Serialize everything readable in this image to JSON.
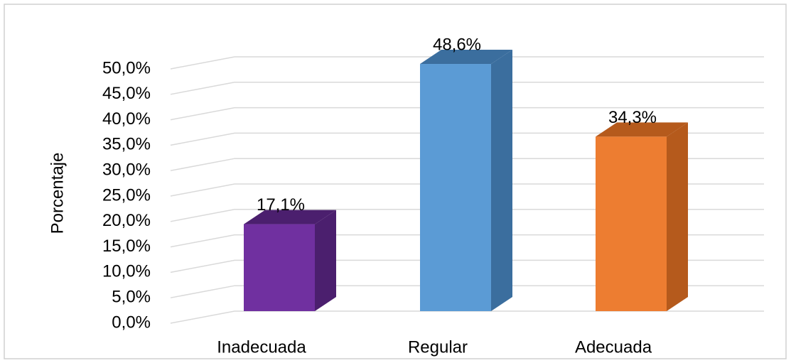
{
  "chart_data": {
    "type": "bar3d",
    "y_label": "Porcentaje",
    "categories": [
      "Inadecuada",
      "Regular",
      "Adecuada"
    ],
    "values": [
      17.1,
      48.6,
      34.3
    ],
    "value_labels": [
      "17,1%",
      "48,6%",
      "34,3%"
    ],
    "colors": [
      "#7030a0",
      "#5b9bd5",
      "#ed7d31"
    ],
    "side_colors": [
      "#4b1f6e",
      "#3b6e9e",
      "#b55a1c"
    ],
    "ylim": [
      0,
      50
    ],
    "yticks": [
      {
        "value": 0,
        "label": "0,0%"
      },
      {
        "value": 5,
        "label": "5,0%"
      },
      {
        "value": 10,
        "label": "10,0%"
      },
      {
        "value": 15,
        "label": "15,0%"
      },
      {
        "value": 20,
        "label": "20,0%"
      },
      {
        "value": 25,
        "label": "25,0%"
      },
      {
        "value": 30,
        "label": "30,0%"
      },
      {
        "value": 35,
        "label": "35,0%"
      },
      {
        "value": 40,
        "label": "40,0%"
      },
      {
        "value": 45,
        "label": "45,0%"
      },
      {
        "value": 50,
        "label": "50,0%"
      }
    ],
    "grid": true
  }
}
